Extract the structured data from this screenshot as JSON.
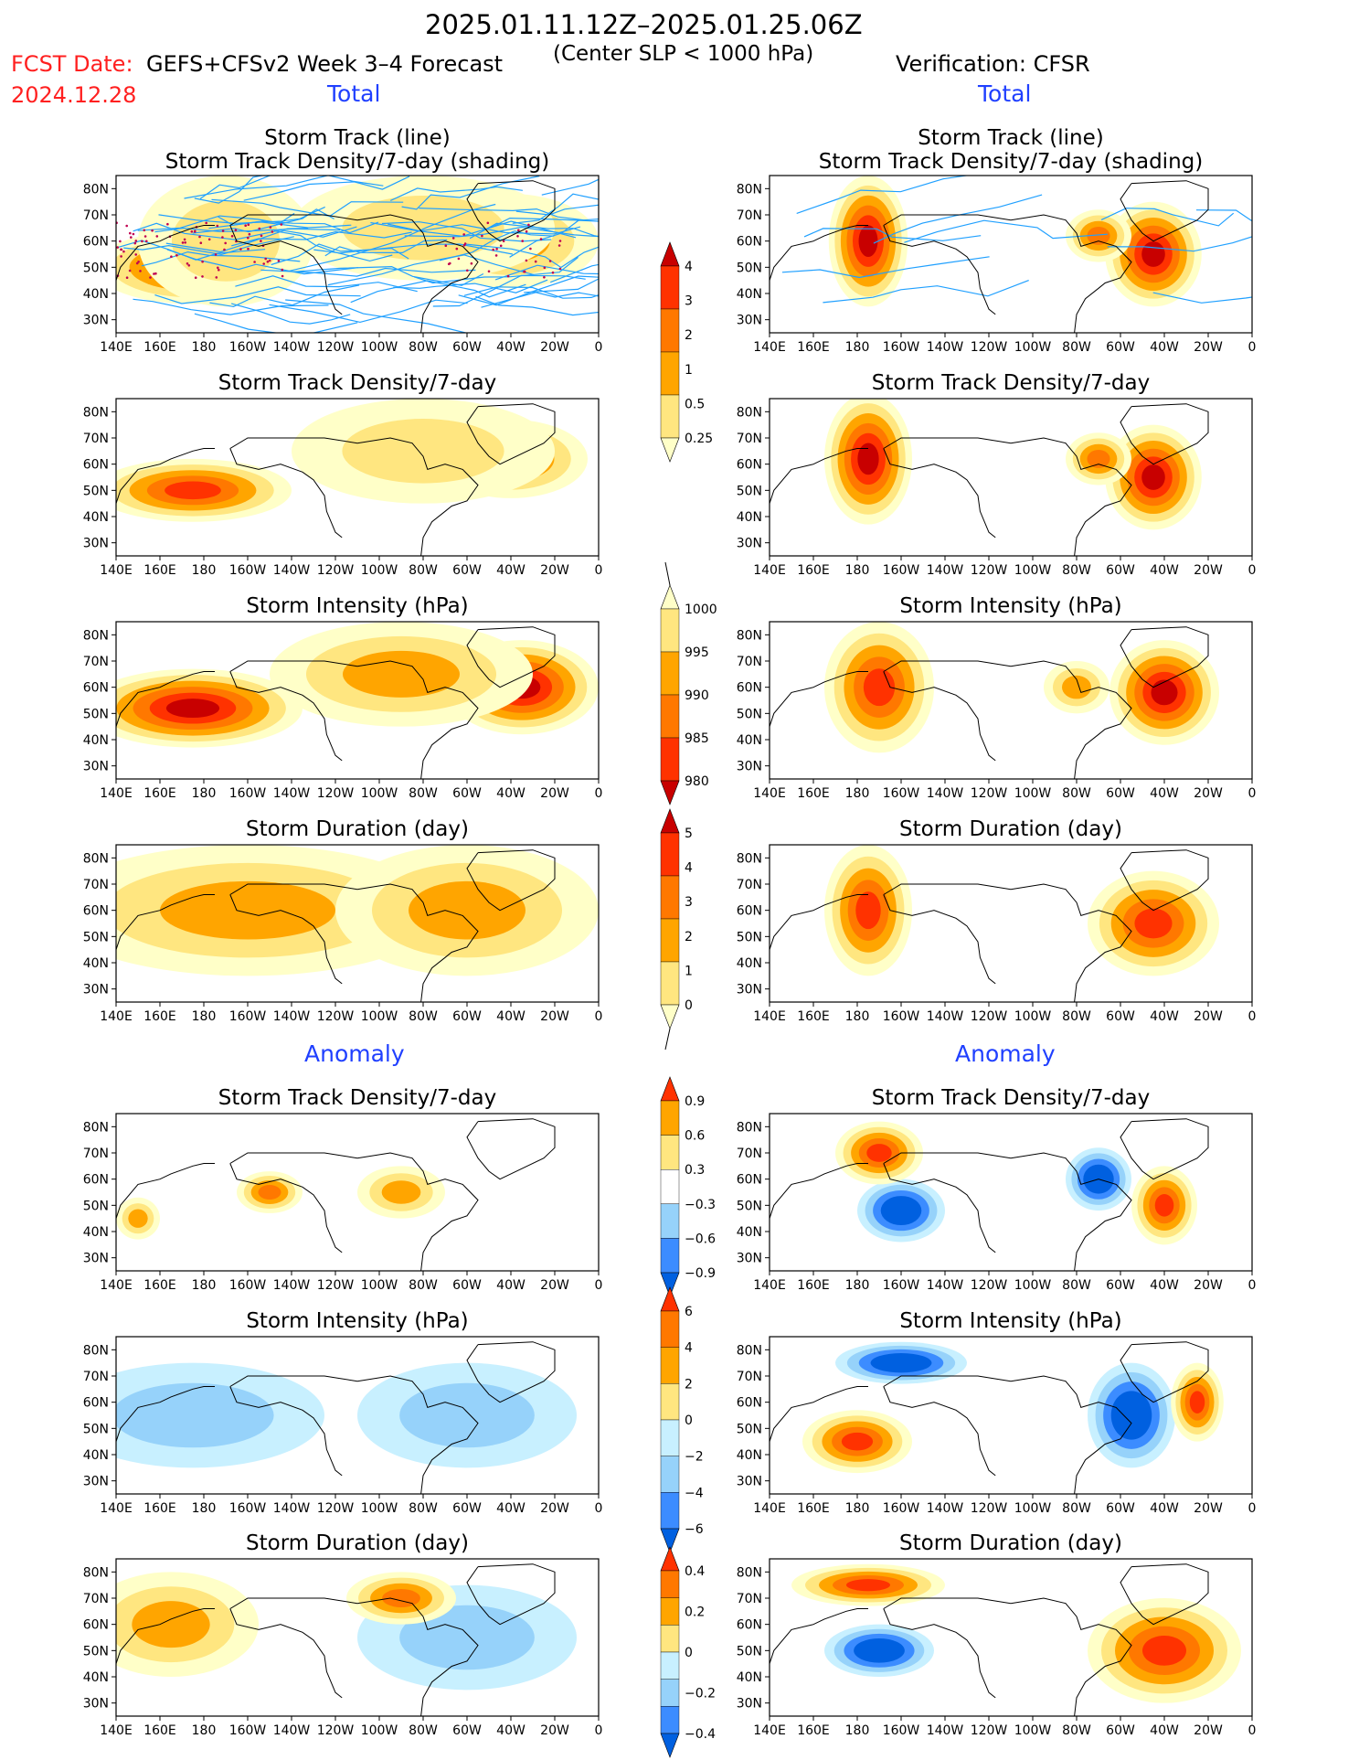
{
  "header": {
    "period": "2025.01.11.12Z–2025.01.25.06Z",
    "criterion": "(Center SLP < 1000 hPa)",
    "fcst_label": "FCST Date:",
    "model_label": "GEFS+CFSv2 Week 3–4 Forecast",
    "fcst_date": "2024.12.28",
    "verification_label": "Verification: CFSR"
  },
  "sections": {
    "total_left": "Total",
    "total_right": "Total",
    "anomaly_left": "Anomaly",
    "anomaly_right": "Anomaly"
  },
  "axes": {
    "lon_ticks": [
      "140E",
      "160E",
      "180",
      "160W",
      "140W",
      "120W",
      "100W",
      "80W",
      "60W",
      "40W",
      "20W",
      "0"
    ],
    "lat_ticks": [
      "80N",
      "70N",
      "60N",
      "50N",
      "40N",
      "30N"
    ]
  },
  "colors": {
    "lightyellow": "#ffffc8",
    "yellow": "#ffe680",
    "orange": "#ffa500",
    "darkorange": "#ff7800",
    "red": "#ff3200",
    "darkred": "#c80000",
    "darkblue": "#0060e0",
    "blue": "#3c8cff",
    "lightblue": "#96d2fa",
    "palecyan": "#c8f0ff",
    "track_line": "#20a0ff",
    "track_dots": "#c00050"
  },
  "colorbars": [
    {
      "name": "density-total-colorbar",
      "labels": [
        "4",
        "3",
        "2",
        "1",
        "0.5",
        "0.25"
      ]
    },
    {
      "name": "intensity-total-colorbar",
      "labels": [
        "1000",
        "995",
        "990",
        "985",
        "980"
      ]
    },
    {
      "name": "duration-total-colorbar",
      "labels": [
        "5",
        "4",
        "3",
        "2",
        "1",
        "0"
      ]
    },
    {
      "name": "density-anomaly-colorbar",
      "labels": [
        "0.9",
        "0.6",
        "0.3",
        "−0.3",
        "−0.6",
        "−0.9"
      ]
    },
    {
      "name": "intensity-anomaly-colorbar",
      "labels": [
        "6",
        "4",
        "2",
        "0",
        "−2",
        "−4",
        "−6"
      ]
    },
    {
      "name": "duration-anomaly-colorbar",
      "labels": [
        "0.4",
        "0.2",
        "0",
        "−0.2",
        "−0.4"
      ]
    }
  ],
  "chart_data": [
    {
      "type": "heatmap",
      "panel": "forecast-total-track",
      "title": "Storm Track (line)",
      "title2": "Storm Track Density/7-day (shading)",
      "blobs": [
        {
          "lon": 175,
          "lat": 50,
          "w": 45,
          "h": 14,
          "v": 5
        },
        {
          "lon": -40,
          "lat": 60,
          "w": 40,
          "h": 18,
          "v": 3
        },
        {
          "lon": -80,
          "lat": 65,
          "w": 60,
          "h": 20,
          "v": 2
        },
        {
          "lon": -170,
          "lat": 60,
          "w": 40,
          "h": 25,
          "v": 2
        }
      ],
      "tracks": true
    },
    {
      "type": "heatmap",
      "panel": "verification-total-track",
      "title": "Storm Track (line)",
      "title2": "Storm Track Density/7-day (shading)",
      "blobs": [
        {
          "lon": -175,
          "lat": 60,
          "w": 18,
          "h": 25,
          "v": 6
        },
        {
          "lon": -45,
          "lat": 55,
          "w": 22,
          "h": 20,
          "v": 6
        },
        {
          "lon": -70,
          "lat": 62,
          "w": 15,
          "h": 10,
          "v": 4
        }
      ],
      "tracks": true
    },
    {
      "type": "heatmap",
      "panel": "forecast-total-density",
      "title": "Storm Track Density/7-day",
      "blobs": [
        {
          "lon": 175,
          "lat": 50,
          "w": 45,
          "h": 12,
          "v": 5
        },
        {
          "lon": -40,
          "lat": 62,
          "w": 35,
          "h": 15,
          "v": 4
        },
        {
          "lon": -80,
          "lat": 65,
          "w": 60,
          "h": 20,
          "v": 2
        }
      ]
    },
    {
      "type": "heatmap",
      "panel": "verification-total-density",
      "title": "Storm Track Density/7-day",
      "blobs": [
        {
          "lon": -175,
          "lat": 62,
          "w": 20,
          "h": 25,
          "v": 6
        },
        {
          "lon": -45,
          "lat": 55,
          "w": 22,
          "h": 20,
          "v": 6
        },
        {
          "lon": -70,
          "lat": 62,
          "w": 15,
          "h": 10,
          "v": 4
        }
      ]
    },
    {
      "type": "heatmap",
      "panel": "forecast-total-intensity",
      "title": "Storm Intensity (hPa)",
      "blobs": [
        {
          "lon": 175,
          "lat": 52,
          "w": 50,
          "h": 15,
          "v": 6
        },
        {
          "lon": -35,
          "lat": 60,
          "w": 35,
          "h": 18,
          "v": 6
        },
        {
          "lon": -90,
          "lat": 65,
          "w": 60,
          "h": 20,
          "v": 3
        }
      ]
    },
    {
      "type": "heatmap",
      "panel": "verification-total-intensity",
      "title": "Storm Intensity (hPa)",
      "blobs": [
        {
          "lon": -170,
          "lat": 60,
          "w": 25,
          "h": 25,
          "v": 5
        },
        {
          "lon": -40,
          "lat": 58,
          "w": 25,
          "h": 20,
          "v": 6
        },
        {
          "lon": -80,
          "lat": 60,
          "w": 15,
          "h": 10,
          "v": 3
        }
      ]
    },
    {
      "type": "heatmap",
      "panel": "forecast-total-duration",
      "title": "Storm Duration (day)",
      "blobs": [
        {
          "lon": -160,
          "lat": 60,
          "w": 90,
          "h": 25,
          "v": 3
        },
        {
          "lon": -60,
          "lat": 60,
          "w": 60,
          "h": 25,
          "v": 3
        }
      ]
    },
    {
      "type": "heatmap",
      "panel": "verification-total-duration",
      "title": "Storm Duration (day)",
      "blobs": [
        {
          "lon": -175,
          "lat": 60,
          "w": 20,
          "h": 25,
          "v": 5
        },
        {
          "lon": -45,
          "lat": 55,
          "w": 30,
          "h": 20,
          "v": 5
        }
      ]
    },
    {
      "type": "heatmap",
      "panel": "forecast-anomaly-density",
      "title": "Storm Track Density/7-day",
      "blobs": [
        {
          "lon": 150,
          "lat": 45,
          "w": 10,
          "h": 8,
          "v": 3
        },
        {
          "lon": -150,
          "lat": 55,
          "w": 15,
          "h": 8,
          "v": 4
        },
        {
          "lon": -90,
          "lat": 55,
          "w": 20,
          "h": 10,
          "v": 3
        }
      ]
    },
    {
      "type": "heatmap",
      "panel": "verification-anomaly-density",
      "title": "Storm Track Density/7-day",
      "blobs": [
        {
          "lon": -160,
          "lat": 48,
          "w": 20,
          "h": 12,
          "v": -5
        },
        {
          "lon": -170,
          "lat": 70,
          "w": 20,
          "h": 12,
          "v": 5
        },
        {
          "lon": -40,
          "lat": 50,
          "w": 15,
          "h": 15,
          "v": 5
        },
        {
          "lon": -70,
          "lat": 60,
          "w": 15,
          "h": 12,
          "v": -5
        }
      ]
    },
    {
      "type": "heatmap",
      "panel": "forecast-anomaly-intensity",
      "title": "Storm Intensity (hPa)",
      "blobs": [
        {
          "lon": 175,
          "lat": 55,
          "w": 60,
          "h": 20,
          "v": -2
        },
        {
          "lon": -60,
          "lat": 55,
          "w": 50,
          "h": 20,
          "v": -2
        }
      ]
    },
    {
      "type": "heatmap",
      "panel": "verification-anomaly-intensity",
      "title": "Storm Intensity (hPa)",
      "blobs": [
        {
          "lon": -180,
          "lat": 45,
          "w": 25,
          "h": 12,
          "v": 5
        },
        {
          "lon": -160,
          "lat": 75,
          "w": 30,
          "h": 8,
          "v": -5
        },
        {
          "lon": -55,
          "lat": 55,
          "w": 20,
          "h": 20,
          "v": -5
        },
        {
          "lon": -25,
          "lat": 60,
          "w": 12,
          "h": 15,
          "v": 5
        }
      ]
    },
    {
      "type": "heatmap",
      "panel": "forecast-anomaly-duration",
      "title": "Storm Duration (day)",
      "blobs": [
        {
          "lon": 165,
          "lat": 60,
          "w": 40,
          "h": 20,
          "v": 3
        },
        {
          "lon": -60,
          "lat": 55,
          "w": 50,
          "h": 20,
          "v": -2
        },
        {
          "lon": -90,
          "lat": 70,
          "w": 25,
          "h": 10,
          "v": 4
        }
      ]
    },
    {
      "type": "heatmap",
      "panel": "verification-anomaly-duration",
      "title": "Storm Duration (day)",
      "blobs": [
        {
          "lon": -175,
          "lat": 75,
          "w": 35,
          "h": 8,
          "v": 5
        },
        {
          "lon": -170,
          "lat": 50,
          "w": 25,
          "h": 10,
          "v": -5
        },
        {
          "lon": -40,
          "lat": 50,
          "w": 35,
          "h": 20,
          "v": 5
        }
      ]
    }
  ]
}
